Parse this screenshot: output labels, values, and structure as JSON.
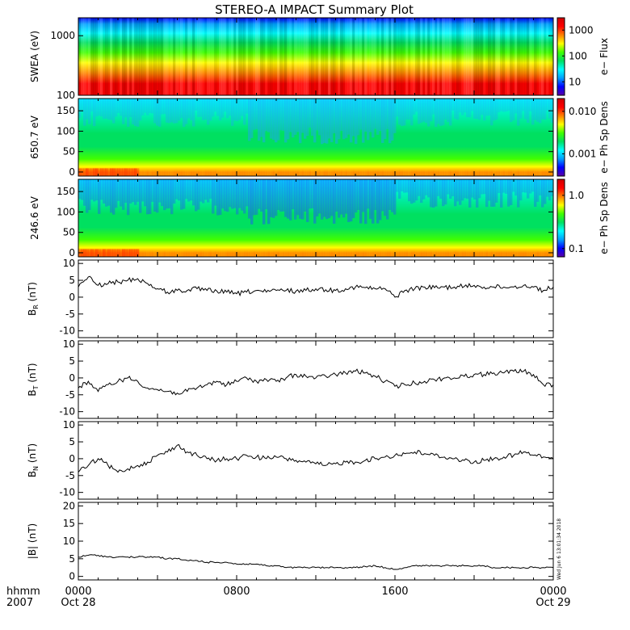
{
  "title": "STEREO-A IMPACT Summary Plot",
  "time_axis": {
    "label_line1": "hhmm",
    "label_line2": "2007",
    "ticks": [
      {
        "hour": 0,
        "top": "0000",
        "bottom": "Oct 28"
      },
      {
        "hour": 8,
        "top": "0800",
        "bottom": ""
      },
      {
        "hour": 16,
        "top": "1600",
        "bottom": ""
      },
      {
        "hour": 24,
        "top": "0000",
        "bottom": "Oct 29"
      }
    ],
    "range_hours": [
      0,
      24
    ]
  },
  "timestamp": "Wed Jun  6 13:01:34 2018",
  "colors": {
    "spectrogram": [
      "#5a00a8",
      "#0000ff",
      "#00a0ff",
      "#00ffff",
      "#00e060",
      "#40ff00",
      "#ffff00",
      "#ff8000",
      "#ff0000",
      "#d00000"
    ]
  },
  "chart_data": [
    {
      "type": "heatmap",
      "ylabel": "SWEA (eV)",
      "yscale": "log",
      "ylim": [
        100,
        2000
      ],
      "yticks": [
        {
          "v": 100,
          "label": "100"
        },
        {
          "v": 1000,
          "label": "1000"
        }
      ],
      "colorbar": {
        "label": "e− Flux",
        "scale": "log",
        "range": [
          3,
          3000
        ],
        "ticks": [
          {
            "v": 10,
            "label": "10"
          },
          {
            "v": 100,
            "label": "100"
          },
          {
            "v": 1000,
            "label": "1000"
          }
        ]
      }
    },
    {
      "type": "heatmap",
      "ylabel": "650.7 eV",
      "ylim": [
        -10,
        180
      ],
      "yticks": [
        {
          "v": 0,
          "label": "0"
        },
        {
          "v": 50,
          "label": "50"
        },
        {
          "v": 100,
          "label": "100"
        },
        {
          "v": 150,
          "label": "150"
        }
      ],
      "colorbar": {
        "label": "e− Ph Sp Dens",
        "scale": "log",
        "range": [
          0.0003,
          0.02
        ],
        "ticks": [
          {
            "v": 0.001,
            "label": "0.001"
          },
          {
            "v": 0.01,
            "label": "0.010"
          }
        ]
      }
    },
    {
      "type": "heatmap",
      "ylabel": "246.6 eV",
      "ylim": [
        -10,
        180
      ],
      "yticks": [
        {
          "v": 0,
          "label": "0"
        },
        {
          "v": 50,
          "label": "50"
        },
        {
          "v": 100,
          "label": "100"
        },
        {
          "v": 150,
          "label": "150"
        }
      ],
      "colorbar": {
        "label": "e− Ph Sp Dens",
        "scale": "log",
        "range": [
          0.07,
          2.0
        ],
        "ticks": [
          {
            "v": 0.1,
            "label": "0.1"
          },
          {
            "v": 1.0,
            "label": "1.0"
          }
        ]
      }
    },
    {
      "type": "line",
      "ylabel_main": "B",
      "ylabel_sub": "R",
      "ylabel_unit": " (nT)",
      "ylim": [
        -12,
        11
      ],
      "yticks": [
        -10,
        -5,
        0,
        5,
        10
      ],
      "x": [
        0,
        0.5,
        1.0,
        1.5,
        2.0,
        2.5,
        3.0,
        3.5,
        4.0,
        4.5,
        5.0,
        5.5,
        6.0,
        6.5,
        7.0,
        7.5,
        8.0,
        8.5,
        9.0,
        9.5,
        10.0,
        10.5,
        11.0,
        11.5,
        12.0,
        12.5,
        13.0,
        13.5,
        14.0,
        14.5,
        15.0,
        15.5,
        16.0,
        16.5,
        17.0,
        17.5,
        18.0,
        18.5,
        19.0,
        19.5,
        20.0,
        20.5,
        21.0,
        21.5,
        22.0,
        22.5,
        23.0,
        23.5,
        24.0
      ],
      "y": [
        3,
        6,
        3.5,
        4,
        4.5,
        5,
        5.5,
        4,
        2.5,
        1.5,
        2,
        2,
        2.5,
        2,
        1.8,
        1.5,
        1.0,
        1.5,
        2.0,
        1.5,
        2.0,
        2.0,
        1.8,
        2.0,
        2.5,
        2.2,
        2.0,
        2.5,
        3.0,
        2.8,
        2.5,
        2.5,
        0.0,
        2.0,
        2.5,
        3.0,
        2.8,
        3.0,
        3.0,
        3.2,
        3.5,
        3.0,
        3.0,
        3.0,
        3.0,
        3.5,
        3.0,
        2.0,
        3.0
      ]
    },
    {
      "type": "line",
      "ylabel_main": "B",
      "ylabel_sub": "T",
      "ylabel_unit": " (nT)",
      "ylim": [
        -12,
        11
      ],
      "yticks": [
        -10,
        -5,
        0,
        5,
        10
      ],
      "x": [
        0,
        0.5,
        1.0,
        1.5,
        2.0,
        2.5,
        3.0,
        3.5,
        4.0,
        4.5,
        5.0,
        5.5,
        6.0,
        6.5,
        7.0,
        7.5,
        8.0,
        8.5,
        9.0,
        9.5,
        10.0,
        10.5,
        11.0,
        11.5,
        12.0,
        12.5,
        13.0,
        13.5,
        14.0,
        14.5,
        15.0,
        15.5,
        16.0,
        16.5,
        17.0,
        17.5,
        18.0,
        18.5,
        19.0,
        19.5,
        20.0,
        20.5,
        21.0,
        21.5,
        22.0,
        22.5,
        23.0,
        23.5,
        24.0
      ],
      "y": [
        -3,
        -1,
        -4,
        -2,
        -1,
        0,
        -1,
        -3,
        -3.5,
        -4,
        -4.5,
        -4,
        -3,
        -2,
        -1,
        -2,
        -1.0,
        0.0,
        -1.0,
        -0.5,
        -1.0,
        0.0,
        1.0,
        0.5,
        0.0,
        0.5,
        1.0,
        1.5,
        2.0,
        1.5,
        0.5,
        -1.0,
        -2.5,
        -2.0,
        -1.5,
        -1.0,
        -0.5,
        0.0,
        0.0,
        0.5,
        1.0,
        1.0,
        1.5,
        1.5,
        2.0,
        2.0,
        1.0,
        -2.0,
        -2.0
      ]
    },
    {
      "type": "line",
      "ylabel_main": "B",
      "ylabel_sub": "N",
      "ylabel_unit": " (nT)",
      "ylim": [
        -12,
        11
      ],
      "yticks": [
        -10,
        -5,
        0,
        5,
        10
      ],
      "x": [
        0,
        0.5,
        1.0,
        1.5,
        2.0,
        2.5,
        3.0,
        3.5,
        4.0,
        4.5,
        5.0,
        5.5,
        6.0,
        6.5,
        7.0,
        7.5,
        8.0,
        8.5,
        9.0,
        9.5,
        10.0,
        10.5,
        11.0,
        11.5,
        12.0,
        12.5,
        13.0,
        13.5,
        14.0,
        14.5,
        15.0,
        15.5,
        16.0,
        16.5,
        17.0,
        17.5,
        18.0,
        18.5,
        19.0,
        19.5,
        20.0,
        20.5,
        21.0,
        21.5,
        22.0,
        22.5,
        23.0,
        23.5,
        24.0
      ],
      "y": [
        -4,
        -2,
        0,
        -2,
        -4,
        -3,
        -2,
        -1,
        1,
        2,
        4,
        2,
        1,
        0,
        -0.5,
        0,
        0.0,
        1.0,
        0.5,
        0.0,
        0.5,
        0.0,
        -0.5,
        -1.0,
        -1.5,
        -2.0,
        -1.5,
        -1.0,
        -1.0,
        -0.5,
        0.0,
        0.5,
        1.0,
        1.5,
        2.0,
        1.5,
        1.0,
        0.5,
        0.0,
        -0.5,
        -1.0,
        -0.5,
        0.0,
        0.5,
        1.0,
        2.0,
        1.0,
        0.5,
        0.0
      ]
    },
    {
      "type": "line",
      "ylabel_main": "|B|",
      "ylabel_sub": "",
      "ylabel_unit": " (nT)",
      "ylim": [
        -1,
        21
      ],
      "yticks": [
        0,
        5,
        10,
        15,
        20
      ],
      "x": [
        0,
        0.5,
        1.0,
        1.5,
        2.0,
        2.5,
        3.0,
        3.5,
        4.0,
        4.5,
        5.0,
        5.5,
        6.0,
        6.5,
        7.0,
        7.5,
        8.0,
        8.5,
        9.0,
        9.5,
        10.0,
        10.5,
        11.0,
        11.5,
        12.0,
        12.5,
        13.0,
        13.5,
        14.0,
        14.5,
        15.0,
        15.5,
        16.0,
        16.5,
        17.0,
        17.5,
        18.0,
        18.5,
        19.0,
        19.5,
        20.0,
        20.5,
        21.0,
        21.5,
        22.0,
        22.5,
        23.0,
        23.5,
        24.0
      ],
      "y": [
        5.5,
        6,
        6,
        5.5,
        5.5,
        5.5,
        5.5,
        5.5,
        5.5,
        5,
        5,
        4.5,
        4.5,
        4,
        4,
        4,
        3.5,
        3.5,
        3.5,
        3.0,
        3.0,
        2.5,
        2.5,
        2.5,
        2.5,
        2.5,
        2.5,
        2.5,
        2.5,
        2.8,
        3.0,
        2.5,
        2.0,
        2.5,
        3.0,
        3.0,
        3.0,
        3.0,
        3.0,
        3.0,
        3.0,
        3.0,
        2.5,
        2.5,
        2.5,
        2.5,
        2.5,
        2.5,
        2.5
      ]
    }
  ]
}
